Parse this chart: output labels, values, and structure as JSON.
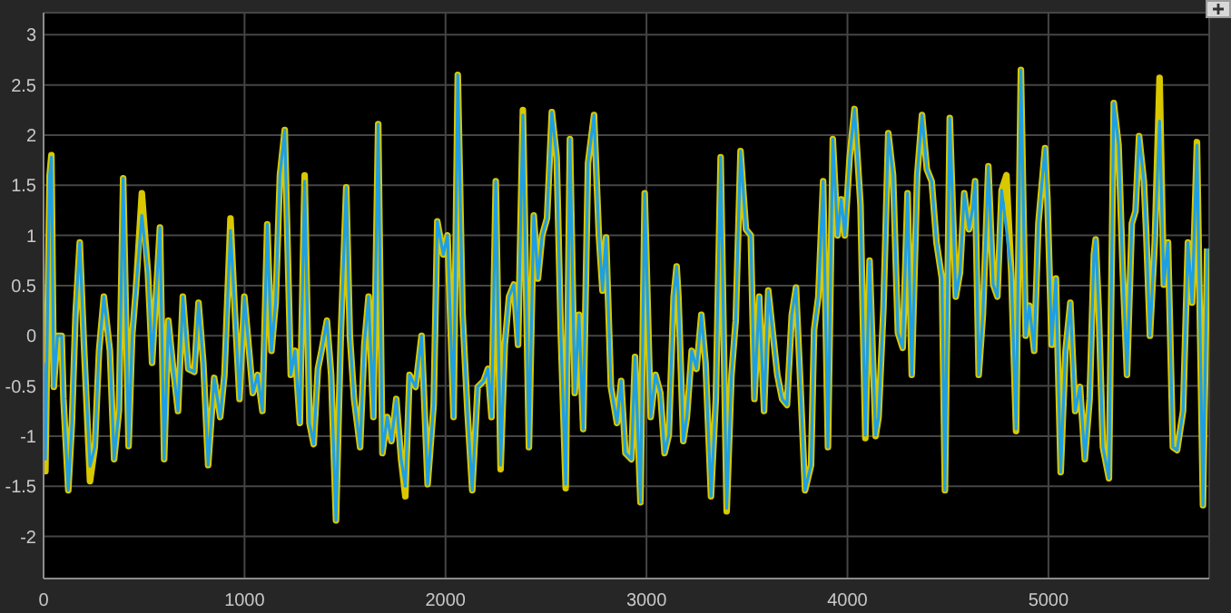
{
  "chart_data": {
    "type": "line",
    "x": [
      0,
      9,
      30,
      39,
      51,
      69,
      90,
      99,
      123,
      141,
      159,
      180,
      201,
      231,
      255,
      276,
      300,
      330,
      351,
      375,
      396,
      423,
      441,
      459,
      489,
      519,
      540,
      579,
      600,
      621,
      645,
      669,
      693,
      720,
      750,
      771,
      795,
      819,
      849,
      879,
      900,
      930,
      951,
      975,
      999,
      1020,
      1041,
      1065,
      1089,
      1113,
      1134,
      1155,
      1176,
      1200,
      1230,
      1251,
      1275,
      1299,
      1323,
      1344,
      1365,
      1383,
      1410,
      1431,
      1455,
      1479,
      1506,
      1524,
      1545,
      1575,
      1596,
      1617,
      1641,
      1665,
      1686,
      1710,
      1731,
      1755,
      1779,
      1800,
      1821,
      1851,
      1881,
      1911,
      1941,
      1959,
      1989,
      2010,
      2040,
      2061,
      2085,
      2109,
      2133,
      2160,
      2190,
      2211,
      2229,
      2250,
      2274,
      2295,
      2316,
      2340,
      2361,
      2385,
      2415,
      2439,
      2460,
      2481,
      2505,
      2529,
      2553,
      2574,
      2598,
      2619,
      2643,
      2664,
      2685,
      2709,
      2739,
      2763,
      2781,
      2799,
      2823,
      2853,
      2874,
      2895,
      2925,
      2943,
      2970,
      2991,
      3021,
      3045,
      3069,
      3090,
      3111,
      3135,
      3150,
      3159,
      3183,
      3201,
      3225,
      3249,
      3273,
      3294,
      3321,
      3345,
      3369,
      3399,
      3423,
      3444,
      3468,
      3495,
      3519,
      3537,
      3561,
      3585,
      3606,
      3630,
      3651,
      3675,
      3699,
      3723,
      3744,
      3765,
      3789,
      3819,
      3834,
      3855,
      3879,
      3903,
      3927,
      3951,
      3969,
      3987,
      4011,
      4035,
      4065,
      4089,
      4110,
      4140,
      4155,
      4179,
      4203,
      4227,
      4251,
      4275,
      4299,
      4320,
      4347,
      4371,
      4395,
      4419,
      4443,
      4470,
      4485,
      4509,
      4539,
      4560,
      4581,
      4605,
      4623,
      4635,
      4653,
      4674,
      4701,
      4725,
      4746,
      4767,
      4791,
      4815,
      4839,
      4863,
      4887,
      4905,
      4929,
      4950,
      4971,
      4983,
      4995,
      5016,
      5037,
      5061,
      5085,
      5109,
      5133,
      5157,
      5181,
      5205,
      5226,
      5235,
      5250,
      5271,
      5301,
      5325,
      5349,
      5370,
      5391,
      5415,
      5433,
      5451,
      5475,
      5487,
      5505,
      5529,
      5553,
      5574,
      5595,
      5619,
      5640,
      5670,
      5694,
      5715,
      5739,
      5769,
      5790
    ],
    "series": [
      {
        "color": "#d9c800",
        "values": [
          -0.27,
          -1.35,
          1.6,
          1.8,
          -0.51,
          0.0,
          0.0,
          -0.63,
          -1.54,
          -0.87,
          0.21,
          0.93,
          -0.09,
          -1.45,
          -1.11,
          -0.15,
          0.39,
          -0.15,
          -1.23,
          -0.75,
          1.57,
          -1.1,
          0.0,
          0.45,
          1.42,
          0.63,
          -0.27,
          1.08,
          -1.23,
          0.15,
          -0.33,
          -0.75,
          0.39,
          -0.33,
          -0.36,
          0.33,
          -0.27,
          -1.29,
          -0.42,
          -0.81,
          -0.39,
          1.17,
          0.27,
          -0.63,
          0.39,
          -0.09,
          -0.57,
          -0.39,
          -0.75,
          1.11,
          -0.15,
          0.33,
          1.6,
          2.05,
          -0.39,
          -0.15,
          -0.87,
          1.6,
          -0.87,
          -1.08,
          -0.33,
          -0.15,
          0.15,
          -0.39,
          -1.84,
          0.0,
          1.48,
          0.0,
          -0.63,
          -1.11,
          -0.09,
          0.39,
          -0.81,
          2.11,
          -1.17,
          -0.81,
          -1.05,
          -0.63,
          -1.23,
          -1.6,
          -0.39,
          -0.51,
          0.0,
          -1.48,
          -0.69,
          1.14,
          0.81,
          1.0,
          -0.81,
          2.6,
          0.21,
          -0.75,
          -1.54,
          -0.51,
          -0.45,
          -0.33,
          -0.81,
          1.54,
          -1.33,
          -0.09,
          0.39,
          0.51,
          -0.09,
          2.25,
          -1.11,
          1.2,
          0.57,
          1.0,
          1.17,
          2.23,
          1.78,
          0.0,
          -1.52,
          1.96,
          -0.57,
          0.21,
          -0.93,
          1.72,
          2.2,
          1.0,
          0.45,
          0.98,
          -0.51,
          -0.87,
          -0.45,
          -1.17,
          -1.23,
          -0.21,
          -1.66,
          1.42,
          -0.81,
          -0.39,
          -0.57,
          -1.17,
          -0.99,
          0.39,
          0.69,
          0.39,
          -1.05,
          -0.81,
          -0.15,
          -0.33,
          0.21,
          -0.27,
          -1.6,
          -0.63,
          1.78,
          -1.75,
          -0.39,
          0.15,
          1.84,
          1.06,
          1.0,
          -0.63,
          0.39,
          -0.75,
          0.45,
          0.0,
          -0.39,
          -0.63,
          -0.69,
          0.21,
          0.48,
          -0.45,
          -1.54,
          -1.29,
          0.06,
          0.39,
          1.54,
          -1.11,
          1.96,
          1.0,
          1.36,
          1.0,
          1.78,
          2.26,
          1.3,
          -1.02,
          0.75,
          -1.0,
          -0.81,
          0.27,
          2.02,
          1.6,
          0.03,
          -0.12,
          1.42,
          -0.39,
          1.6,
          2.2,
          1.66,
          1.54,
          0.93,
          0.57,
          -1.54,
          2.17,
          0.39,
          0.63,
          1.42,
          1.06,
          1.27,
          1.54,
          -0.39,
          0.21,
          1.69,
          0.51,
          0.39,
          1.45,
          1.6,
          0.63,
          -0.95,
          2.65,
          0.0,
          0.3,
          -0.15,
          1.12,
          1.6,
          1.87,
          1.36,
          -0.09,
          0.57,
          -1.36,
          -0.15,
          0.33,
          -0.75,
          -0.51,
          -1.23,
          -0.63,
          0.81,
          0.96,
          0.27,
          -1.11,
          -1.42,
          2.32,
          1.9,
          0.63,
          -0.39,
          1.12,
          1.24,
          1.99,
          1.54,
          1.0,
          0.0,
          0.93,
          2.57,
          0.51,
          0.93,
          -1.11,
          -1.14,
          -0.75,
          0.93,
          0.33,
          1.93,
          -1.69,
          0.87
        ]
      },
      {
        "color": "#1e9fe3",
        "values": [
          -0.27,
          -1.23,
          1.6,
          1.78,
          -0.51,
          0.0,
          0.0,
          -0.63,
          -1.54,
          -0.87,
          0.21,
          0.93,
          -0.09,
          -1.3,
          -1.11,
          -0.15,
          0.39,
          -0.15,
          -1.23,
          -0.75,
          1.57,
          -1.1,
          0.0,
          0.45,
          1.2,
          0.63,
          -0.27,
          1.08,
          -1.23,
          0.15,
          -0.33,
          -0.75,
          0.39,
          -0.33,
          -0.36,
          0.33,
          -0.27,
          -1.29,
          -0.42,
          -0.81,
          -0.39,
          1.05,
          0.27,
          -0.63,
          0.39,
          -0.09,
          -0.57,
          -0.39,
          -0.75,
          1.11,
          -0.15,
          0.33,
          1.6,
          2.05,
          -0.39,
          -0.15,
          -0.87,
          1.54,
          -0.87,
          -1.08,
          -0.33,
          -0.15,
          0.15,
          -0.39,
          -1.84,
          0.0,
          1.48,
          0.0,
          -0.63,
          -1.11,
          -0.09,
          0.39,
          -0.81,
          2.11,
          -1.17,
          -0.81,
          -1.05,
          -0.63,
          -1.23,
          -1.5,
          -0.39,
          -0.51,
          0.0,
          -1.48,
          -0.69,
          1.14,
          0.81,
          1.0,
          -0.81,
          2.6,
          0.21,
          -0.75,
          -1.54,
          -0.51,
          -0.45,
          -0.33,
          -0.81,
          1.54,
          -1.29,
          -0.09,
          0.39,
          0.51,
          -0.09,
          2.2,
          -1.11,
          1.2,
          0.57,
          1.0,
          1.17,
          2.23,
          1.78,
          0.0,
          -1.48,
          1.96,
          -0.57,
          0.21,
          -0.93,
          1.72,
          2.2,
          1.0,
          0.45,
          0.98,
          -0.51,
          -0.87,
          -0.45,
          -1.17,
          -1.23,
          -0.21,
          -1.66,
          1.42,
          -0.81,
          -0.39,
          -0.57,
          -1.17,
          -0.99,
          0.39,
          0.69,
          0.39,
          -1.05,
          -0.81,
          -0.15,
          -0.33,
          0.21,
          -0.27,
          -1.6,
          -0.63,
          1.78,
          -1.72,
          -0.39,
          0.15,
          1.84,
          1.06,
          1.0,
          -0.63,
          0.39,
          -0.75,
          0.45,
          0.0,
          -0.39,
          -0.63,
          -0.69,
          0.21,
          0.48,
          -0.45,
          -1.54,
          -1.29,
          0.06,
          0.39,
          1.54,
          -1.11,
          1.96,
          1.0,
          1.36,
          1.0,
          1.78,
          2.26,
          1.3,
          -0.99,
          0.75,
          -0.99,
          -0.81,
          0.27,
          2.02,
          1.6,
          0.03,
          -0.12,
          1.42,
          -0.39,
          1.6,
          2.2,
          1.66,
          1.54,
          0.93,
          0.57,
          -1.54,
          2.17,
          0.39,
          0.63,
          1.42,
          1.06,
          1.27,
          1.54,
          -0.39,
          0.21,
          1.69,
          0.51,
          0.39,
          1.45,
          1.06,
          0.63,
          -0.93,
          2.65,
          0.0,
          0.3,
          -0.15,
          1.12,
          1.6,
          1.87,
          1.36,
          -0.09,
          0.57,
          -1.36,
          -0.15,
          0.33,
          -0.75,
          -0.51,
          -1.23,
          -0.63,
          0.81,
          0.96,
          0.27,
          -1.11,
          -1.42,
          2.32,
          1.9,
          0.63,
          -0.39,
          1.12,
          1.24,
          1.99,
          1.54,
          1.0,
          0.0,
          0.93,
          2.14,
          0.51,
          0.93,
          -1.11,
          -1.14,
          -0.75,
          0.93,
          0.33,
          1.9,
          -1.69,
          0.87
        ]
      }
    ],
    "xlim": [
      0,
      5800
    ],
    "xticks": [
      0,
      1000,
      2000,
      3000,
      4000,
      5000
    ],
    "ylim": [
      -2.42,
      3.22
    ],
    "yticks": [
      -2,
      -1.5,
      -1,
      -0.5,
      0,
      0.5,
      1,
      1.5,
      2,
      2.5,
      3
    ],
    "grid": true,
    "marker": "none",
    "line_style": "solid"
  }
}
